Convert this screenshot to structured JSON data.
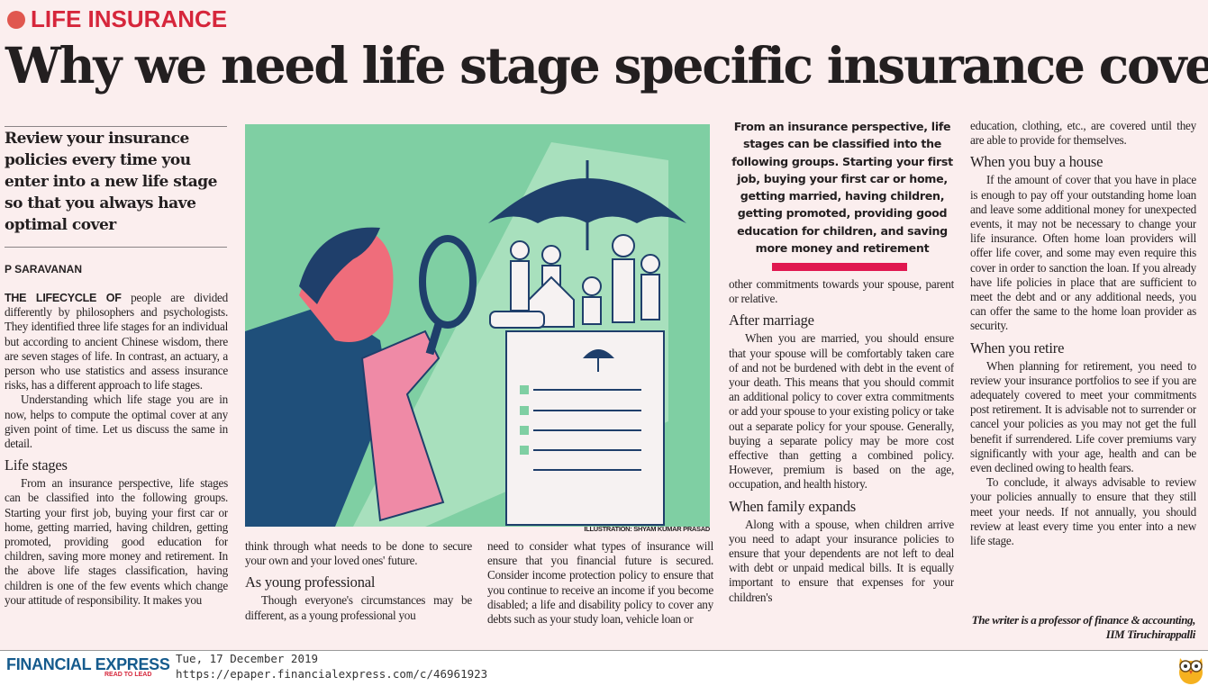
{
  "kicker": "LIFE INSURANCE",
  "headline": "Why we need life stage specific insurance cover",
  "deck": "Review your insurance policies every time you enter into a new life stage so that you always have optimal cover",
  "byline": "P SARAVANAN",
  "colors": {
    "accent": "#d6263b",
    "background": "#fbeeee",
    "illustration_bg": "#7fcfa3",
    "brand": "#155b8d"
  },
  "body": {
    "lead_caps": "THE LIFECYCLE OF",
    "p1": " people are divided differently by philosophers and psychologists. They identified three life stages for an individual but according to ancient Chinese wisdom, there are seven stages of life. In contrast, an actuary, a person who use statistics and assess insurance risks, has a different approach to life stages.",
    "p2": "Understanding which life stage you are in now, helps to compute the optimal cover at any given point of time. Let us discuss the same in detail.",
    "h_life_stages": "Life stages",
    "p3": "From an insurance perspective, life stages can be classified into the following groups. Starting your first job, buying your first car or home, getting married, having children, getting promoted, providing good education for children, saving more money and retirement. In the above life stages classification, having children is one of the few events which change your attitude of responsibility. It makes you",
    "p3b": "think through what needs to be done to secure your own and your loved ones' future.",
    "h_young": "As young professional",
    "p4": "Though everyone's circumstances may be different, as a young professional you",
    "p4b": "need to consider what types of insurance will ensure that you financial future is secured. Consider income protection policy to ensure that you continue to receive an income if you become disabled; a life and disability policy to cover any debts such as your study loan, vehicle loan or",
    "p4c": "other commitments towards your spouse, parent or relative.",
    "h_marriage": "After marriage",
    "p5": "When you are married, you should ensure that your spouse will be comfortably taken care of and not be burdened with debt in the event of your death. This means that you should commit an additional policy to cover extra commitments or add your spouse to your existing policy or take out a separate policy for your spouse. Generally, buying a separate policy may be more cost effective than getting a combined policy. However, premium is based on the age, occupation, and health history.",
    "h_family": "When family expands",
    "p6": "Along with a spouse, when children arrive you need to adapt your insurance policies to ensure that your dependents are not left to deal with debt or unpaid medical bills. It is equally important to ensure that expenses for your children's",
    "p6b": "education, clothing, etc., are covered until they are able to provide for themselves.",
    "h_house": "When you buy a house",
    "p7": "If the amount of cover that you have in place is enough to pay off your outstanding home loan and leave some additional money for unexpected events, it may not be necessary to change your life insurance. Often home loan providers will offer life cover, and some may even require this cover in order to sanction the loan. If you already have life policies in place that are sufficient to meet the debt and or any additional needs, you can offer the same to the home loan provider as security.",
    "h_retire": "When you retire",
    "p8": "When planning for retirement, you need to review your insurance portfolios to see if you are adequately covered to meet your commitments post retirement. It is advisable not to surrender or cancel your policies as you may not get the full benefit if surrendered. Life cover premiums vary significantly with your age, health and can be even declined owing to health fears.",
    "p9": "To conclude, it always advisable to review your policies annually to ensure that they still meet your needs. If not annually, you should review at least every time you enter into a new life stage."
  },
  "pull_quote": "From an insurance perspective, life stages can be classified into the following groups. Starting your first job, buying your first car or home, getting married, having children, getting promoted, providing good education for children, and saving more money and retirement",
  "illustration_credit": "ILLUSTRATION: SHYAM KUMAR PRASAD",
  "signoff": "The writer is a professor of finance & accounting, IIM Tiruchirappalli",
  "footer": {
    "brand": "FINANCIAL EXPRESS",
    "tagline": "READ TO LEAD",
    "date": "Tue, 17 December 2019",
    "url": "https://epaper.financialexpress.com/c/46961923"
  }
}
